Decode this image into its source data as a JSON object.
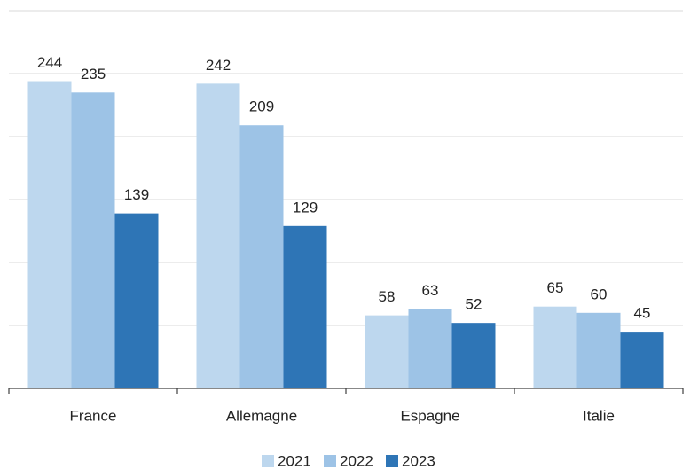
{
  "chart_data": {
    "type": "bar",
    "categories": [
      "France",
      "Allemagne",
      "Espagne",
      "Italie"
    ],
    "series": [
      {
        "name": "2021",
        "color": "#bdd7ee",
        "values": [
          244,
          242,
          58,
          65
        ]
      },
      {
        "name": "2022",
        "color": "#9dc3e6",
        "values": [
          235,
          209,
          63,
          60
        ]
      },
      {
        "name": "2023",
        "color": "#2e75b6",
        "values": [
          139,
          129,
          52,
          45
        ]
      }
    ],
    "ylim": [
      0,
      300
    ],
    "yticks": [
      0,
      50,
      100,
      150,
      200,
      250,
      300
    ],
    "grid": true,
    "legend": "bottom"
  }
}
